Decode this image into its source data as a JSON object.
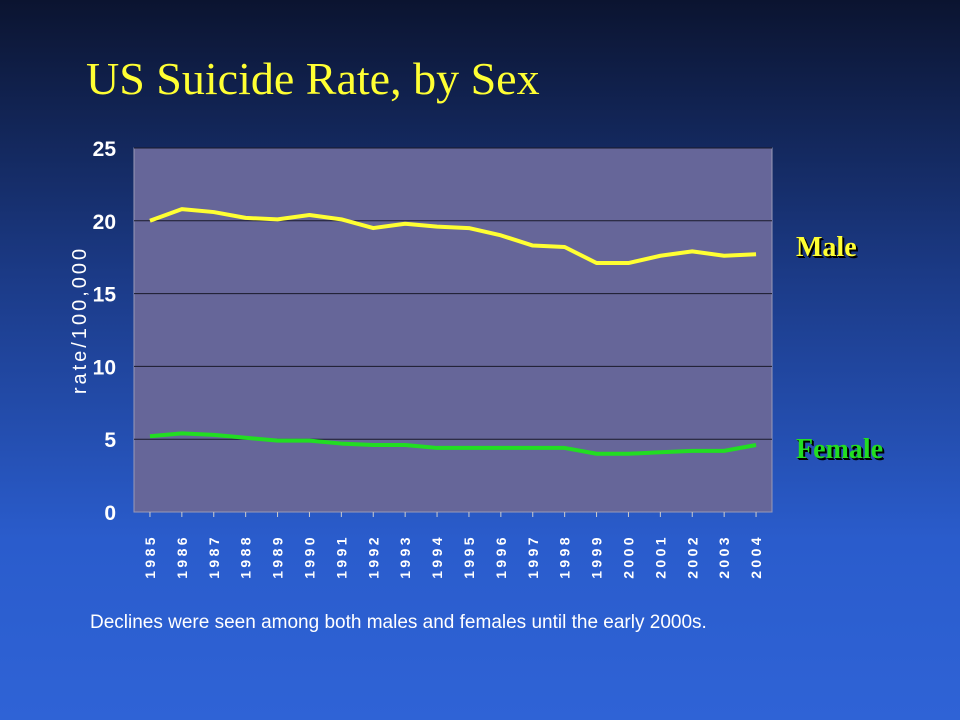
{
  "slide": {
    "title": "US Suicide Rate, by Sex",
    "caption": "Declines were seen among both males and females until the early 2000s."
  },
  "chart_data": {
    "type": "line",
    "title": "US Suicide Rate, by Sex",
    "xlabel": "",
    "ylabel": "rate/100,000",
    "categories": [
      "1985",
      "1986",
      "1987",
      "1988",
      "1989",
      "1990",
      "1991",
      "1992",
      "1993",
      "1994",
      "1995",
      "1996",
      "1997",
      "1998",
      "1999",
      "2000",
      "2001",
      "2002",
      "2003",
      "2004"
    ],
    "ylim": [
      0,
      25
    ],
    "yticks": [
      "0",
      "5",
      "10",
      "15",
      "20",
      "25"
    ],
    "grid": true,
    "series": [
      {
        "name": "Male",
        "color": "#ffff33",
        "values": [
          20.0,
          20.8,
          20.6,
          20.2,
          20.1,
          20.4,
          20.1,
          19.5,
          19.8,
          19.6,
          19.5,
          19.0,
          18.3,
          18.2,
          17.1,
          17.1,
          17.6,
          17.9,
          17.6,
          17.7
        ]
      },
      {
        "name": "Female",
        "color": "#22dd22",
        "values": [
          5.2,
          5.4,
          5.3,
          5.1,
          4.9,
          4.9,
          4.7,
          4.6,
          4.6,
          4.4,
          4.4,
          4.4,
          4.4,
          4.4,
          4.0,
          4.0,
          4.1,
          4.2,
          4.2,
          4.6
        ]
      }
    ],
    "plot_background": "#666699",
    "series_label_colors": {
      "Male": "#ffff33",
      "Female": "#22dd22"
    }
  }
}
